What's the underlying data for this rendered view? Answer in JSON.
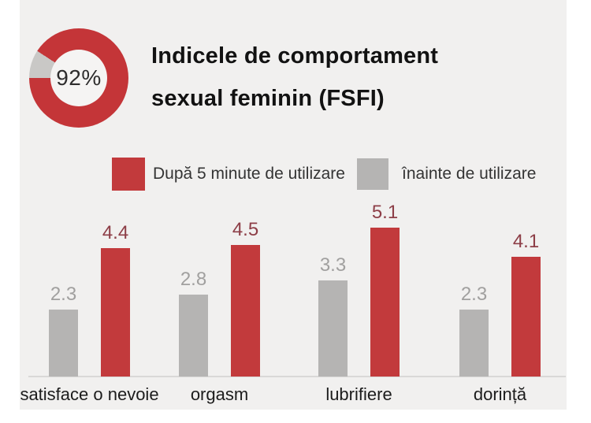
{
  "page": {
    "background": "#ffffff",
    "panel_background": "#f1f0ef"
  },
  "donut": {
    "percent_label": "92%",
    "percent_value": 92,
    "ring_color": "#c43538",
    "remainder_color": "#c9c8c6",
    "hole_color": "#f5f4f3",
    "remainder_start_deg": 270,
    "remainder_end_deg": 303
  },
  "title": {
    "line1": "Indicele de comportament",
    "line2": "sexual feminin (FSFI)"
  },
  "legend": [
    {
      "label": "După 5 minute de utilizare",
      "color": "#c23a3c"
    },
    {
      "label": "înainte de utilizare",
      "color": "#b5b4b3"
    }
  ],
  "chart_data": {
    "type": "bar",
    "title": "Indicele de comportament sexual feminin (FSFI)",
    "categories": [
      "satisface o nevoie",
      "orgasm",
      "lubrifiere",
      "dorință"
    ],
    "series": [
      {
        "name": "înainte de utilizare",
        "values": [
          2.3,
          2.8,
          3.3,
          2.3
        ],
        "color": "#b5b4b3",
        "label_color": "#a1a09f"
      },
      {
        "name": "După 5 minute de utilizare",
        "values": [
          4.4,
          4.5,
          5.1,
          4.1
        ],
        "color": "#c23a3c",
        "label_color": "#8d3e47"
      }
    ],
    "xlabel": "",
    "ylabel": "",
    "value_axis_range": [
      0,
      5.5
    ],
    "grid": false,
    "legend_position": "top",
    "value_labels_shown": true
  }
}
